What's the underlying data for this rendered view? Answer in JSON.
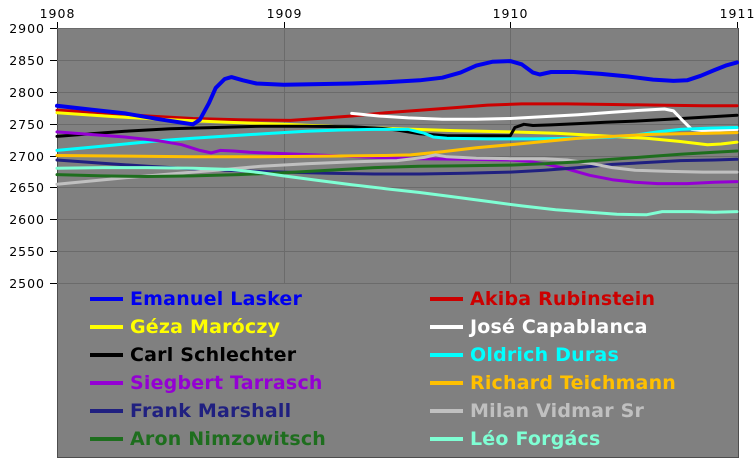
{
  "chart_data": {
    "type": "line",
    "title": "",
    "xlabel": "",
    "ylabel": "",
    "x_axis": {
      "position": "top",
      "ticks": [
        {
          "label": "1908",
          "year": 1908
        },
        {
          "label": "1909",
          "year": 1909
        },
        {
          "label": "1910",
          "year": 1910
        },
        {
          "label": "1911",
          "year": 1911
        }
      ],
      "range": [
        1908,
        1911
      ]
    },
    "y_axis": {
      "position": "left",
      "ticks": [
        {
          "label": "2900",
          "value": 2900
        },
        {
          "label": "2850",
          "value": 2850
        },
        {
          "label": "2800",
          "value": 2800
        },
        {
          "label": "2750",
          "value": 2750
        },
        {
          "label": "2700",
          "value": 2700
        },
        {
          "label": "2650",
          "value": 2650
        },
        {
          "label": "2600",
          "value": 2600
        },
        {
          "label": "2550",
          "value": 2550
        },
        {
          "label": "2500",
          "value": 2500
        }
      ],
      "range": [
        2500,
        2900
      ]
    },
    "grid": true,
    "colors": {
      "plot_background": "#808080",
      "gridline": "#6b6b6b",
      "border": "#4d4d4d",
      "axis_text": "#000000",
      "page_background": "#ffffff"
    },
    "legend_position": "bottom-inside-two-columns",
    "draw_order": [
      "rubinstein",
      "maroczy",
      "schlechter",
      "capablanca",
      "duras",
      "tarrasch",
      "teichmann",
      "marshall",
      "vidmar",
      "nimzowitsch",
      "forgacs",
      "lasker"
    ],
    "series": [
      {
        "id": "lasker",
        "name": "Emanuel Lasker",
        "color": "#0000EE",
        "width": 4,
        "points": [
          [
            1908.0,
            2778
          ],
          [
            1908.15,
            2772
          ],
          [
            1908.3,
            2766
          ],
          [
            1908.45,
            2757
          ],
          [
            1908.56,
            2751
          ],
          [
            1908.6,
            2749
          ],
          [
            1908.63,
            2756
          ],
          [
            1908.67,
            2782
          ],
          [
            1908.7,
            2806
          ],
          [
            1908.74,
            2820
          ],
          [
            1908.77,
            2823
          ],
          [
            1908.82,
            2818
          ],
          [
            1908.88,
            2813
          ],
          [
            1909.0,
            2811
          ],
          [
            1909.15,
            2812
          ],
          [
            1909.3,
            2813
          ],
          [
            1909.45,
            2815
          ],
          [
            1909.6,
            2818
          ],
          [
            1909.7,
            2822
          ],
          [
            1909.78,
            2830
          ],
          [
            1909.85,
            2841
          ],
          [
            1909.92,
            2847
          ],
          [
            1910.0,
            2848
          ],
          [
            1910.05,
            2843
          ],
          [
            1910.1,
            2830
          ],
          [
            1910.13,
            2827
          ],
          [
            1910.18,
            2831
          ],
          [
            1910.28,
            2831
          ],
          [
            1910.4,
            2828
          ],
          [
            1910.52,
            2824
          ],
          [
            1910.63,
            2819
          ],
          [
            1910.72,
            2817
          ],
          [
            1910.78,
            2818
          ],
          [
            1910.84,
            2825
          ],
          [
            1910.9,
            2834
          ],
          [
            1910.95,
            2841
          ],
          [
            1911.0,
            2846
          ]
        ]
      },
      {
        "id": "rubinstein",
        "name": "Akiba Rubinstein",
        "color": "#CC0000",
        "width": 3,
        "points": [
          [
            1908.0,
            2771
          ],
          [
            1908.2,
            2767
          ],
          [
            1908.4,
            2762
          ],
          [
            1908.6,
            2758
          ],
          [
            1908.8,
            2756
          ],
          [
            1909.03,
            2755
          ],
          [
            1909.15,
            2758
          ],
          [
            1909.3,
            2762
          ],
          [
            1909.45,
            2767
          ],
          [
            1909.6,
            2771
          ],
          [
            1909.75,
            2775
          ],
          [
            1909.9,
            2779
          ],
          [
            1910.05,
            2781
          ],
          [
            1910.25,
            2781
          ],
          [
            1910.45,
            2780
          ],
          [
            1910.65,
            2779
          ],
          [
            1910.85,
            2778
          ],
          [
            1911.0,
            2778
          ]
        ]
      },
      {
        "id": "maroczy",
        "name": "Géza Maróczy",
        "color": "#FFFF00",
        "width": 3,
        "points": [
          [
            1908.0,
            2767
          ],
          [
            1908.25,
            2761
          ],
          [
            1908.5,
            2756
          ],
          [
            1908.75,
            2752
          ],
          [
            1909.0,
            2749
          ],
          [
            1909.25,
            2745
          ],
          [
            1909.5,
            2742
          ],
          [
            1909.75,
            2739
          ],
          [
            1910.0,
            2737
          ],
          [
            1910.2,
            2735
          ],
          [
            1910.4,
            2731
          ],
          [
            1910.6,
            2727
          ],
          [
            1910.75,
            2722
          ],
          [
            1910.87,
            2717
          ],
          [
            1910.93,
            2718
          ],
          [
            1911.0,
            2721
          ]
        ]
      },
      {
        "id": "capablanca",
        "name": "José Capablanca",
        "color": "#FFFFFF",
        "width": 3,
        "points": [
          [
            1909.3,
            2766
          ],
          [
            1909.42,
            2762
          ],
          [
            1909.55,
            2759
          ],
          [
            1909.7,
            2757
          ],
          [
            1909.85,
            2757
          ],
          [
            1910.0,
            2758
          ],
          [
            1910.15,
            2761
          ],
          [
            1910.3,
            2764
          ],
          [
            1910.45,
            2768
          ],
          [
            1910.58,
            2771
          ],
          [
            1910.68,
            2773
          ],
          [
            1910.72,
            2770
          ],
          [
            1910.76,
            2755
          ],
          [
            1910.8,
            2741
          ],
          [
            1910.85,
            2739
          ],
          [
            1910.92,
            2740
          ],
          [
            1911.0,
            2741
          ]
        ]
      },
      {
        "id": "schlechter",
        "name": "Carl Schlechter",
        "color": "#000000",
        "width": 3,
        "points": [
          [
            1908.0,
            2730
          ],
          [
            1908.15,
            2734
          ],
          [
            1908.3,
            2738
          ],
          [
            1908.5,
            2742
          ],
          [
            1908.7,
            2744
          ],
          [
            1908.9,
            2746
          ],
          [
            1909.1,
            2746
          ],
          [
            1909.3,
            2745
          ],
          [
            1909.45,
            2742
          ],
          [
            1909.5,
            2740
          ],
          [
            1909.6,
            2734
          ],
          [
            1909.72,
            2731
          ],
          [
            1909.9,
            2731
          ],
          [
            1910.0,
            2731
          ],
          [
            1910.02,
            2744
          ],
          [
            1910.06,
            2749
          ],
          [
            1910.1,
            2747
          ],
          [
            1910.18,
            2748
          ],
          [
            1910.3,
            2750
          ],
          [
            1910.42,
            2752
          ],
          [
            1910.55,
            2754
          ],
          [
            1910.7,
            2757
          ],
          [
            1910.85,
            2760
          ],
          [
            1911.0,
            2763
          ]
        ]
      },
      {
        "id": "duras",
        "name": "Oldrich Duras",
        "color": "#00FFFF",
        "width": 3,
        "points": [
          [
            1908.0,
            2708
          ],
          [
            1908.15,
            2713
          ],
          [
            1908.3,
            2718
          ],
          [
            1908.45,
            2723
          ],
          [
            1908.6,
            2727
          ],
          [
            1908.77,
            2731
          ],
          [
            1908.95,
            2735
          ],
          [
            1909.1,
            2738
          ],
          [
            1909.25,
            2740
          ],
          [
            1909.4,
            2741
          ],
          [
            1909.55,
            2741
          ],
          [
            1909.62,
            2735
          ],
          [
            1909.66,
            2729
          ],
          [
            1909.72,
            2727
          ],
          [
            1909.9,
            2726
          ],
          [
            1910.1,
            2726
          ],
          [
            1910.3,
            2727
          ],
          [
            1910.45,
            2729
          ],
          [
            1910.55,
            2732
          ],
          [
            1910.65,
            2737
          ],
          [
            1910.75,
            2741
          ],
          [
            1910.88,
            2743
          ],
          [
            1911.0,
            2744
          ]
        ]
      },
      {
        "id": "tarrasch",
        "name": "Siegbert Tarrasch",
        "color": "#9400D3",
        "width": 3,
        "points": [
          [
            1908.0,
            2737
          ],
          [
            1908.15,
            2733
          ],
          [
            1908.3,
            2729
          ],
          [
            1908.45,
            2723
          ],
          [
            1908.55,
            2717
          ],
          [
            1908.63,
            2708
          ],
          [
            1908.68,
            2704
          ],
          [
            1908.72,
            2708
          ],
          [
            1908.78,
            2707
          ],
          [
            1908.85,
            2705
          ],
          [
            1909.0,
            2703
          ],
          [
            1909.2,
            2700
          ],
          [
            1909.4,
            2697
          ],
          [
            1909.6,
            2695
          ],
          [
            1909.8,
            2694
          ],
          [
            1910.0,
            2693
          ],
          [
            1910.08,
            2691
          ],
          [
            1910.15,
            2687
          ],
          [
            1910.25,
            2679
          ],
          [
            1910.35,
            2669
          ],
          [
            1910.45,
            2662
          ],
          [
            1910.55,
            2658
          ],
          [
            1910.65,
            2656
          ],
          [
            1910.78,
            2656
          ],
          [
            1910.9,
            2658
          ],
          [
            1911.0,
            2659
          ]
        ]
      },
      {
        "id": "teichmann",
        "name": "Richard Teichmann",
        "color": "#FFC000",
        "width": 3,
        "points": [
          [
            1908.0,
            2700
          ],
          [
            1908.3,
            2699
          ],
          [
            1908.6,
            2698
          ],
          [
            1908.9,
            2698
          ],
          [
            1909.2,
            2699
          ],
          [
            1909.45,
            2700
          ],
          [
            1909.56,
            2701
          ],
          [
            1909.7,
            2706
          ],
          [
            1909.85,
            2712
          ],
          [
            1910.0,
            2717
          ],
          [
            1910.15,
            2722
          ],
          [
            1910.3,
            2727
          ],
          [
            1910.45,
            2730
          ],
          [
            1910.6,
            2733
          ],
          [
            1910.75,
            2734
          ],
          [
            1910.88,
            2735
          ],
          [
            1911.0,
            2736
          ]
        ]
      },
      {
        "id": "marshall",
        "name": "Frank Marshall",
        "color": "#202080",
        "width": 3,
        "points": [
          [
            1908.0,
            2693
          ],
          [
            1908.2,
            2688
          ],
          [
            1908.4,
            2683
          ],
          [
            1908.6,
            2679
          ],
          [
            1908.8,
            2676
          ],
          [
            1909.0,
            2674
          ],
          [
            1909.2,
            2672
          ],
          [
            1909.4,
            2671
          ],
          [
            1909.6,
            2671
          ],
          [
            1909.8,
            2672
          ],
          [
            1910.0,
            2674
          ],
          [
            1910.15,
            2677
          ],
          [
            1910.3,
            2681
          ],
          [
            1910.45,
            2686
          ],
          [
            1910.6,
            2689
          ],
          [
            1910.75,
            2692
          ],
          [
            1910.9,
            2693
          ],
          [
            1911.0,
            2694
          ]
        ]
      },
      {
        "id": "vidmar",
        "name": "Milan Vidmar Sr",
        "color": "#C0C0C0",
        "width": 3,
        "points": [
          [
            1908.0,
            2655
          ],
          [
            1908.15,
            2660
          ],
          [
            1908.3,
            2665
          ],
          [
            1908.5,
            2671
          ],
          [
            1908.7,
            2677
          ],
          [
            1908.9,
            2683
          ],
          [
            1909.1,
            2687
          ],
          [
            1909.3,
            2690
          ],
          [
            1909.5,
            2692
          ],
          [
            1909.62,
            2697
          ],
          [
            1909.67,
            2701
          ],
          [
            1909.72,
            2698
          ],
          [
            1909.85,
            2696
          ],
          [
            1910.0,
            2695
          ],
          [
            1910.15,
            2695
          ],
          [
            1910.25,
            2693
          ],
          [
            1910.35,
            2688
          ],
          [
            1910.45,
            2681
          ],
          [
            1910.55,
            2677
          ],
          [
            1910.7,
            2675
          ],
          [
            1910.85,
            2674
          ],
          [
            1911.0,
            2674
          ]
        ]
      },
      {
        "id": "nimzowitsch",
        "name": "Aron Nimzowitsch",
        "color": "#1E6E1E",
        "width": 3,
        "points": [
          [
            1908.0,
            2670
          ],
          [
            1908.2,
            2668
          ],
          [
            1908.4,
            2667
          ],
          [
            1908.6,
            2668
          ],
          [
            1908.8,
            2670
          ],
          [
            1909.0,
            2673
          ],
          [
            1909.2,
            2677
          ],
          [
            1909.4,
            2681
          ],
          [
            1909.6,
            2683
          ],
          [
            1909.8,
            2684
          ],
          [
            1910.0,
            2685
          ],
          [
            1910.15,
            2687
          ],
          [
            1910.3,
            2690
          ],
          [
            1910.45,
            2694
          ],
          [
            1910.6,
            2698
          ],
          [
            1910.75,
            2702
          ],
          [
            1910.9,
            2705
          ],
          [
            1911.0,
            2707
          ]
        ]
      },
      {
        "id": "forgacs",
        "name": "Léo Forgács",
        "color": "#7FFFD4",
        "width": 3,
        "points": [
          [
            1908.0,
            2680
          ],
          [
            1908.2,
            2681
          ],
          [
            1908.4,
            2681
          ],
          [
            1908.6,
            2680
          ],
          [
            1908.77,
            2678
          ],
          [
            1908.9,
            2673
          ],
          [
            1909.0,
            2668
          ],
          [
            1909.15,
            2661
          ],
          [
            1909.3,
            2654
          ],
          [
            1909.45,
            2648
          ],
          [
            1909.6,
            2642
          ],
          [
            1909.75,
            2635
          ],
          [
            1909.9,
            2628
          ],
          [
            1910.05,
            2621
          ],
          [
            1910.2,
            2615
          ],
          [
            1910.35,
            2611
          ],
          [
            1910.47,
            2608
          ],
          [
            1910.6,
            2607
          ],
          [
            1910.67,
            2612
          ],
          [
            1910.8,
            2612
          ],
          [
            1910.9,
            2611
          ],
          [
            1911.0,
            2612
          ]
        ]
      }
    ]
  }
}
